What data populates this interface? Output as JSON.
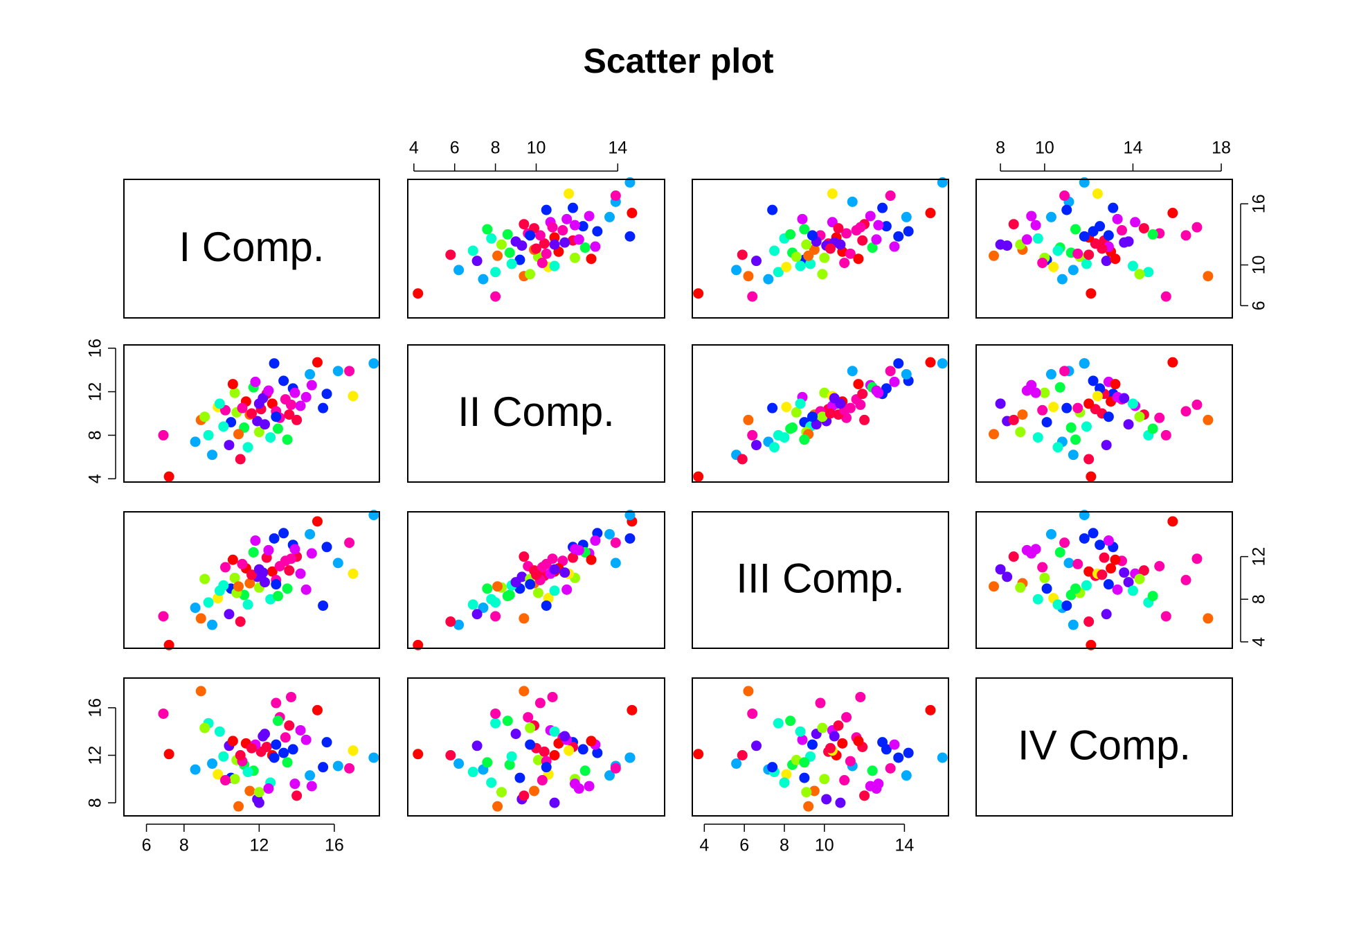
{
  "chart_data": {
    "type": "scatter_matrix",
    "title": "Scatter plot",
    "colors": [
      "#FF0044",
      "#0022FF",
      "#FF00AA",
      "#00FF44",
      "#DD00FF",
      "#00FFCC",
      "#FF0000",
      "#6600FF",
      "#0022FF",
      "#99FF00",
      "#FF00AA",
      "#00AAFF",
      "#FF0044",
      "#FF6600",
      "#DD00FF",
      "#00FFCC",
      "#0022FF",
      "#FF00AA",
      "#FFEE00",
      "#FF0000",
      "#00AAFF",
      "#99FF00",
      "#6600FF",
      "#FF0044",
      "#00FF44",
      "#DD00FF",
      "#FF6600",
      "#00FFCC",
      "#FF00AA",
      "#0022FF",
      "#FF0000",
      "#99FF00",
      "#6600FF",
      "#00AAFF",
      "#FF0044",
      "#DD00FF",
      "#00FF44",
      "#FF00AA",
      "#0022FF",
      "#FFEE00",
      "#FF0000",
      "#00FFCC",
      "#FF00AA",
      "#6600FF",
      "#FF6600",
      "#0022FF",
      "#99FF00",
      "#DD00FF",
      "#FF0044",
      "#00AAFF",
      "#FF00AA",
      "#00FF44",
      "#FF0000",
      "#6600FF",
      "#00AAFF",
      "#FF0044",
      "#DD00FF",
      "#00FFCC",
      "#0022FF",
      "#FF00AA"
    ],
    "variables": [
      {
        "name": "I Comp.",
        "lim": [
          4.8,
          18.4
        ],
        "xticks": [
          6,
          8,
          12,
          16
        ],
        "yticks": [
          6,
          10,
          16
        ],
        "values": [
          12.1,
          10.5,
          13.4,
          11.2,
          14.8,
          9.3,
          12.7,
          11.9,
          15.6,
          10.8,
          13.1,
          8.6,
          12.4,
          11.5,
          14.2,
          10.1,
          13.8,
          12.9,
          9.8,
          11.3,
          16.2,
          12.0,
          10.4,
          13.6,
          11.7,
          14.5,
          8.9,
          12.6,
          11.1,
          13.3,
          15.1,
          10.7,
          12.3,
          9.5,
          14.0,
          11.8,
          13.0,
          10.2,
          12.8,
          17.0,
          7.2,
          11.4,
          13.7,
          12.2,
          10.9,
          15.4,
          9.1,
          12.5,
          11.6,
          14.7,
          6.9,
          13.5,
          10.6,
          12.0,
          18.1,
          11.0,
          13.9,
          9.9,
          12.9,
          16.8
        ]
      },
      {
        "name": "II Comp.",
        "lim": [
          3.7,
          16.3
        ],
        "xticks": [
          4,
          6,
          8,
          10,
          14
        ],
        "yticks": [
          4,
          8,
          12,
          16
        ],
        "values": [
          10.4,
          9.2,
          11.3,
          8.7,
          12.6,
          8.0,
          10.9,
          9.3,
          11.8,
          10.1,
          9.6,
          7.4,
          11.8,
          9.9,
          10.7,
          8.8,
          12.3,
          10.2,
          10.6,
          11.1,
          13.9,
          8.3,
          7.1,
          9.9,
          12.4,
          11.5,
          9.4,
          7.8,
          10.5,
          13.0,
          14.7,
          11.9,
          9.0,
          6.2,
          9.4,
          12.9,
          8.6,
          10.3,
          14.6,
          11.6,
          4.2,
          6.9,
          10.8,
          11.4,
          8.1,
          10.5,
          9.7,
          12.1,
          10.0,
          13.6,
          8.0,
          7.6,
          12.7,
          10.9,
          14.6,
          5.8,
          11.9,
          10.9,
          9.7,
          13.9
        ]
      },
      {
        "name": "III Comp.",
        "lim": [
          3.4,
          16.2
        ],
        "xticks": [
          4,
          6,
          8,
          10,
          14
        ],
        "yticks": [
          4,
          8,
          12
        ],
        "values": [
          10.2,
          9.0,
          11.6,
          8.4,
          12.3,
          7.7,
          10.6,
          10.1,
          12.9,
          8.6,
          11.1,
          7.2,
          11.9,
          9.5,
          10.4,
          9.3,
          13.1,
          9.8,
          8.1,
          10.9,
          11.4,
          9.1,
          6.6,
          10.7,
          12.4,
          8.9,
          6.2,
          8.0,
          11.3,
          14.2,
          15.3,
          10.0,
          9.6,
          5.6,
          12.0,
          13.5,
          8.3,
          11.0,
          13.7,
          10.4,
          3.7,
          7.5,
          11.8,
          10.5,
          9.2,
          7.4,
          9.9,
          12.6,
          10.3,
          14.1,
          6.4,
          9.0,
          11.7,
          10.8,
          15.9,
          5.9,
          12.7,
          8.8,
          9.4,
          13.3
        ]
      },
      {
        "name": "IV Comp.",
        "lim": [
          6.9,
          18.5
        ],
        "xticks": [
          8,
          10,
          14,
          18
        ],
        "yticks": [
          8,
          12,
          16
        ],
        "values": [
          12.3,
          10.1,
          13.5,
          11.2,
          9.4,
          14.7,
          12.0,
          8.3,
          13.1,
          11.6,
          15.2,
          10.8,
          12.7,
          9.0,
          14.1,
          11.9,
          12.5,
          16.4,
          10.4,
          13.0,
          11.1,
          8.9,
          12.8,
          14.5,
          10.7,
          13.3,
          17.4,
          9.7,
          11.5,
          12.2,
          15.8,
          10.0,
          13.8,
          11.3,
          8.6,
          12.9,
          14.9,
          9.9,
          11.8,
          12.4,
          12.1,
          10.6,
          16.9,
          13.6,
          7.7,
          11.0,
          14.3,
          9.2,
          12.6,
          10.3,
          15.5,
          11.4,
          13.2,
          8.0,
          11.8,
          12.0,
          9.6,
          14.0,
          12.9,
          10.9
        ]
      }
    ]
  }
}
